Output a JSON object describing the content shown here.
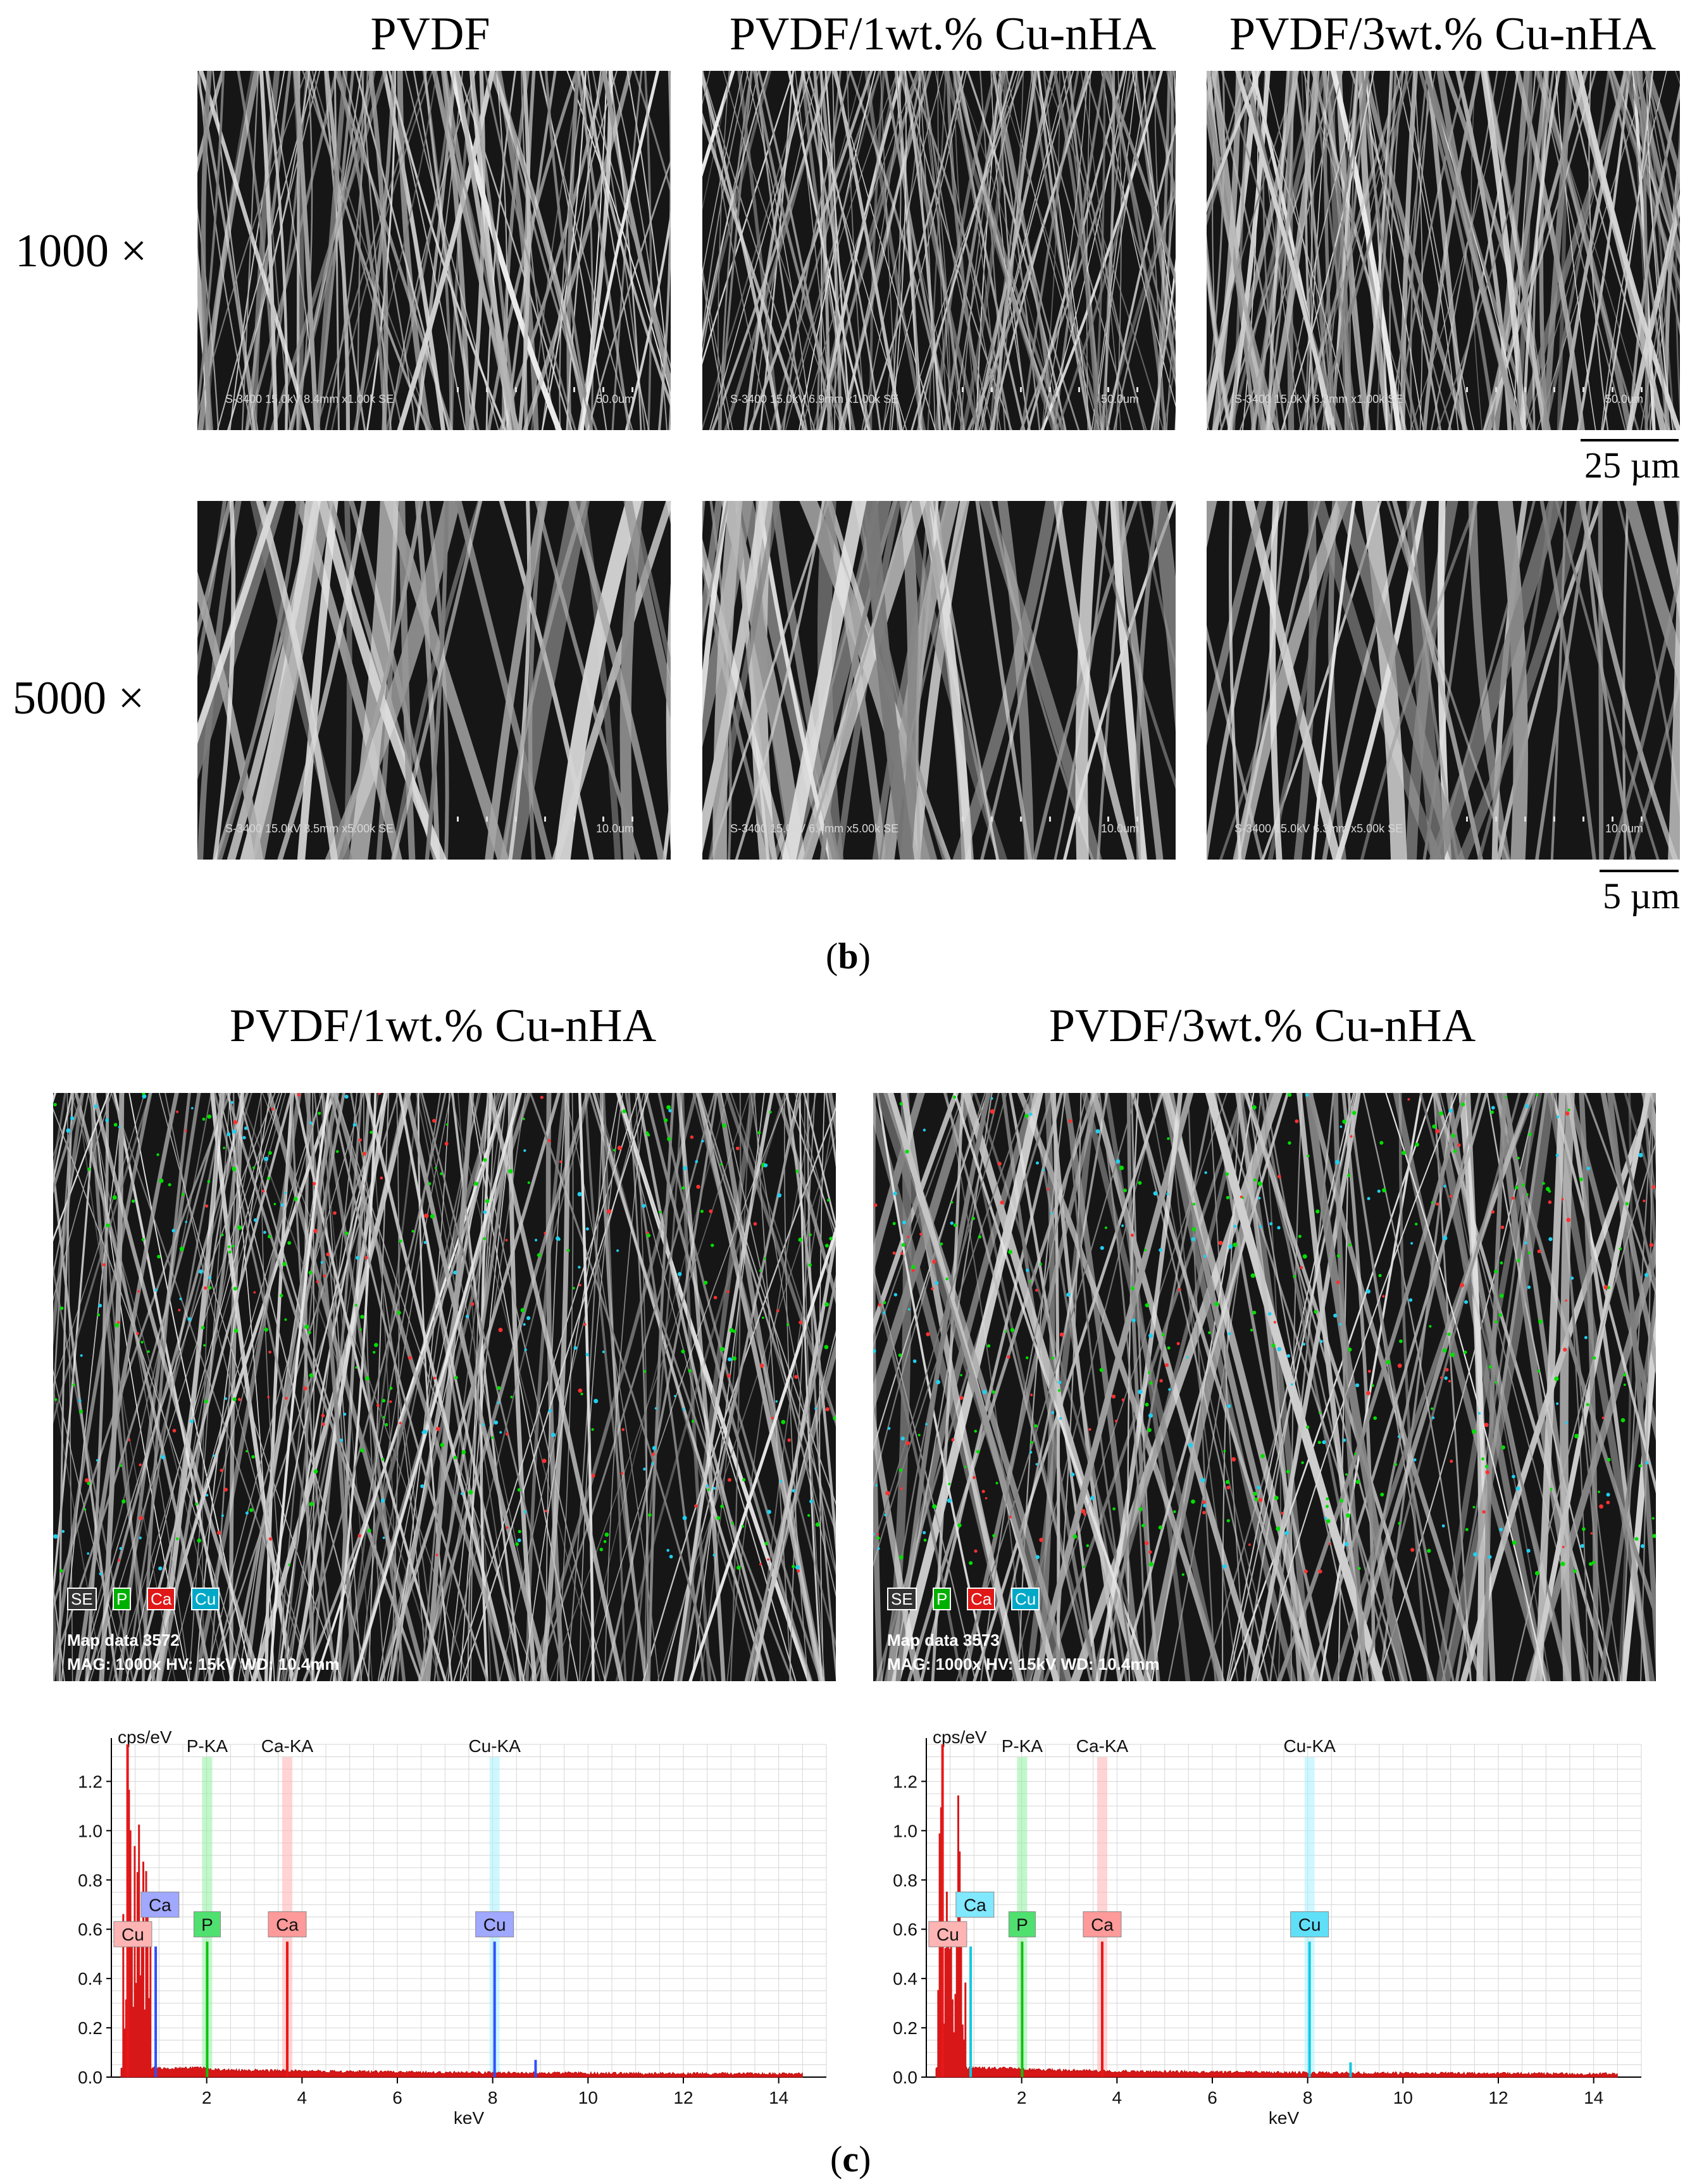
{
  "panel_b": {
    "columns": [
      "PVDF",
      "PVDF/1wt.% Cu-nHA",
      "PVDF/3wt.% Cu-nHA"
    ],
    "rows": [
      "1000 ×",
      "5000 ×"
    ],
    "sem_info_row1": [
      "S-3400 15.0kV 8.4mm x1.00k SE",
      "S-3400 15.0kV 6.9mm x1.00k SE",
      "S-3400 15.0kV 6.3mm x1.00k SE"
    ],
    "sem_scale_row1": "50.0um",
    "sem_info_row2": [
      "S-3400 15.0kV 8.5mm x5.00k SE",
      "S-3400 15.0kV 6.4mm x5.00k SE",
      "S-3400 15.0kV 6.3mm x5.00k SE"
    ],
    "sem_scale_row2": "10.0um",
    "scalebar_row1": "25 µm",
    "scalebar_row2": "5 µm",
    "label": "b"
  },
  "panel_c": {
    "titles": [
      "PVDF/1wt.% Cu-nHA",
      "PVDF/3wt.% Cu-nHA"
    ],
    "legend": [
      "SE",
      "P",
      "Ca",
      "Cu"
    ],
    "legend_colors": {
      "SE": "#ffffff",
      "P": "#00cc00",
      "Ca": "#ff2020",
      "Cu": "#00c8e0"
    },
    "map_data": [
      "Map data 3572",
      "Map data 3573"
    ],
    "map_params": "MAG: 1000x  HV: 15kV  WD: 10.4mm",
    "label": "c"
  },
  "chart_data": [
    {
      "type": "line",
      "ylabel": "cps/eV",
      "xlabel": "keV",
      "xlim": [
        0,
        15
      ],
      "ylim": [
        0,
        1.35
      ],
      "xticks": [
        "2",
        "4",
        "6",
        "8",
        "10",
        "12",
        "14"
      ],
      "yticks": [
        "0.0",
        "0.2",
        "0.4",
        "0.6",
        "0.8",
        "1.0",
        "1.2"
      ],
      "peak_lines": [
        "P-KA",
        "Ca-KA",
        "Cu-KA"
      ],
      "peak_boxes": [
        "Cu",
        "Ca",
        "P",
        "Ca",
        "Cu"
      ],
      "cu_color": "#3050ff",
      "peaks": [
        {
          "element": "Ca",
          "x": 0.34,
          "y": 1.35
        },
        {
          "element": "Cu",
          "x": 0.93,
          "y": 0.53
        },
        {
          "element": "P",
          "x": 2.01,
          "y": 0.55
        },
        {
          "element": "Ca",
          "x": 3.69,
          "y": 0.55
        },
        {
          "element": "Cu",
          "x": 8.04,
          "y": 0.55
        },
        {
          "element": "Cu",
          "x": 8.9,
          "y": 0.07
        }
      ]
    },
    {
      "type": "line",
      "ylabel": "cps/eV",
      "xlabel": "keV",
      "xlim": [
        0,
        15
      ],
      "ylim": [
        0,
        1.35
      ],
      "xticks": [
        "2",
        "4",
        "6",
        "8",
        "10",
        "12",
        "14"
      ],
      "yticks": [
        "0.0",
        "0.2",
        "0.4",
        "0.6",
        "0.8",
        "1.0",
        "1.2"
      ],
      "peak_lines": [
        "P-KA",
        "Ca-KA",
        "Cu-KA"
      ],
      "peak_boxes": [
        "Cu",
        "Ca",
        "P",
        "Ca",
        "Cu"
      ],
      "cu_color": "#10c8e0",
      "peaks": [
        {
          "element": "Ca",
          "x": 0.34,
          "y": 1.35
        },
        {
          "element": "Cu",
          "x": 0.93,
          "y": 0.53
        },
        {
          "element": "P",
          "x": 2.01,
          "y": 0.55
        },
        {
          "element": "Ca",
          "x": 3.69,
          "y": 0.55
        },
        {
          "element": "Cu",
          "x": 8.04,
          "y": 0.55
        },
        {
          "element": "Cu",
          "x": 8.9,
          "y": 0.06
        }
      ]
    }
  ]
}
